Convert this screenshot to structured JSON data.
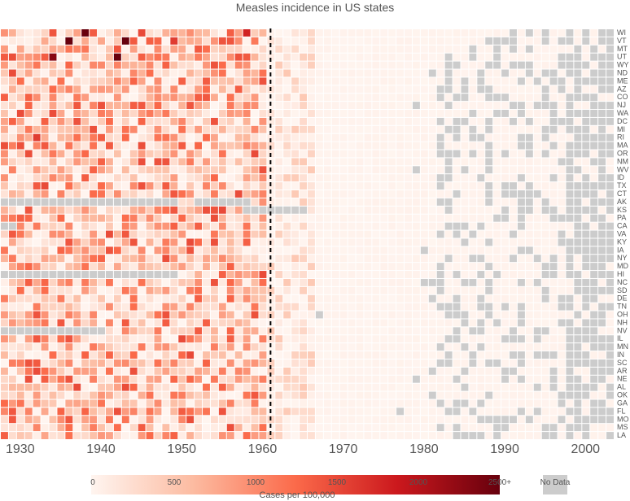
{
  "chart_data": {
    "type": "heatmap",
    "title": "Measles incidence in US states",
    "x_range": [
      1928,
      2003
    ],
    "x_ticks": [
      1930,
      1940,
      1950,
      1960,
      1970,
      1980,
      1990,
      2000
    ],
    "vaccine_year": 1961,
    "states": [
      "WI",
      "VT",
      "MT",
      "UT",
      "WY",
      "ND",
      "ME",
      "AZ",
      "CO",
      "NJ",
      "WA",
      "DC",
      "MI",
      "RI",
      "MA",
      "OR",
      "NM",
      "WV",
      "ID",
      "TX",
      "CT",
      "AK",
      "KS",
      "PA",
      "CA",
      "VA",
      "KY",
      "IA",
      "NY",
      "MD",
      "HI",
      "NC",
      "SD",
      "DE",
      "TN",
      "OH",
      "NH",
      "NV",
      "IL",
      "MN",
      "IN",
      "SC",
      "AR",
      "NE",
      "AL",
      "OK",
      "GA",
      "FL",
      "MO",
      "MS",
      "LA"
    ],
    "color_scale": {
      "domain": [
        0,
        2500
      ],
      "colors": [
        "#fff5f0",
        "#fcbba1",
        "#fb6a4a",
        "#cb181d",
        "#67000d"
      ],
      "ticks": [
        "0",
        "500",
        "1000",
        "1500",
        "2000",
        "2500+"
      ],
      "title": "Cases per 100,000"
    },
    "no_data": {
      "label": "No Data",
      "color": "#cccccc"
    },
    "highlight_cells": [
      {
        "state": "WI",
        "year": 1938,
        "value": 2500
      },
      {
        "state": "VT",
        "year": 1936,
        "value": 2500
      },
      {
        "state": "VT",
        "year": 1943,
        "value": 2500
      },
      {
        "state": "UT",
        "year": 1934,
        "value": 2300
      },
      {
        "state": "UT",
        "year": 1942,
        "value": 2500
      },
      {
        "state": "RI",
        "year": 1932,
        "value": 1600
      },
      {
        "state": "WI",
        "year": 1958,
        "value": 1800
      },
      {
        "state": "VT",
        "year": 1949,
        "value": 1600
      }
    ],
    "grid": false,
    "legend_position": "bottom"
  }
}
